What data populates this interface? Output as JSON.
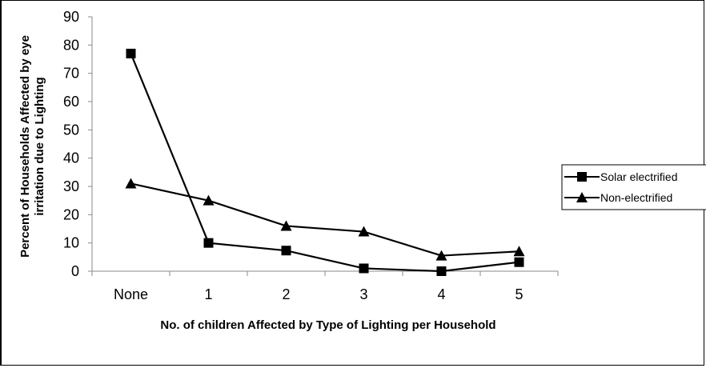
{
  "chart_data": {
    "type": "line",
    "title": "",
    "xlabel": "No. of children Affected by Type of Lighting per Household",
    "ylabel_lines": [
      "Percent of Households Affected by eye",
      "irritation due to Lighting"
    ],
    "categories": [
      "None",
      "1",
      "2",
      "3",
      "4",
      "5"
    ],
    "ylim": [
      0,
      90
    ],
    "yticks": [
      "0",
      "10",
      "20",
      "30",
      "40",
      "50",
      "60",
      "70",
      "80",
      "90"
    ],
    "grid": false,
    "legend_position": "right",
    "series": [
      {
        "name": "Solar electrified",
        "marker": "square",
        "color": "#000000",
        "values": [
          77,
          10,
          7.3,
          1,
          0,
          3.2
        ]
      },
      {
        "name": "Non-electrified",
        "marker": "triangle",
        "color": "#000000",
        "values": [
          31,
          25,
          16,
          14,
          5.5,
          7
        ]
      }
    ]
  }
}
